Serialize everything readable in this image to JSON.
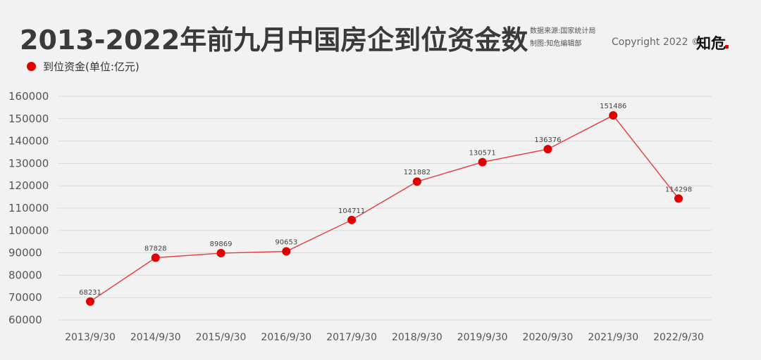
{
  "header": {
    "title": "2013-2022年前九月中国房企到位资金数",
    "source_line1": "数据来源:国家统计局",
    "source_line2": "制图:知危编辑部",
    "copyright": "Copyright 2022 ©",
    "brand": "知危"
  },
  "colors": {
    "series": "#e10000",
    "line": "#e33b3b",
    "grid": "#d9d9d9",
    "background": "#f2f2f2"
  },
  "chart_data": {
    "type": "line",
    "title": "2013-2022年前九月中国房企到位资金数",
    "xlabel": "",
    "ylabel": "",
    "legend_position": "top-left",
    "grid": true,
    "x": [
      "2013/9/30",
      "2014/9/30",
      "2015/9/30",
      "2016/9/30",
      "2017/9/30",
      "2018/9/30",
      "2019/9/30",
      "2020/9/30",
      "2021/9/30",
      "2022/9/30"
    ],
    "ylim": [
      60000,
      160000
    ],
    "yticks": [
      "60000",
      "70000",
      "80000",
      "90000",
      "100000",
      "110000",
      "120000",
      "130000",
      "140000",
      "150000",
      "160000"
    ],
    "series": [
      {
        "name": "到位资金(单位:亿元)",
        "values": [
          68231,
          87828,
          89869,
          90653,
          104711,
          121882,
          130571,
          136376,
          151486,
          114298
        ]
      }
    ]
  }
}
